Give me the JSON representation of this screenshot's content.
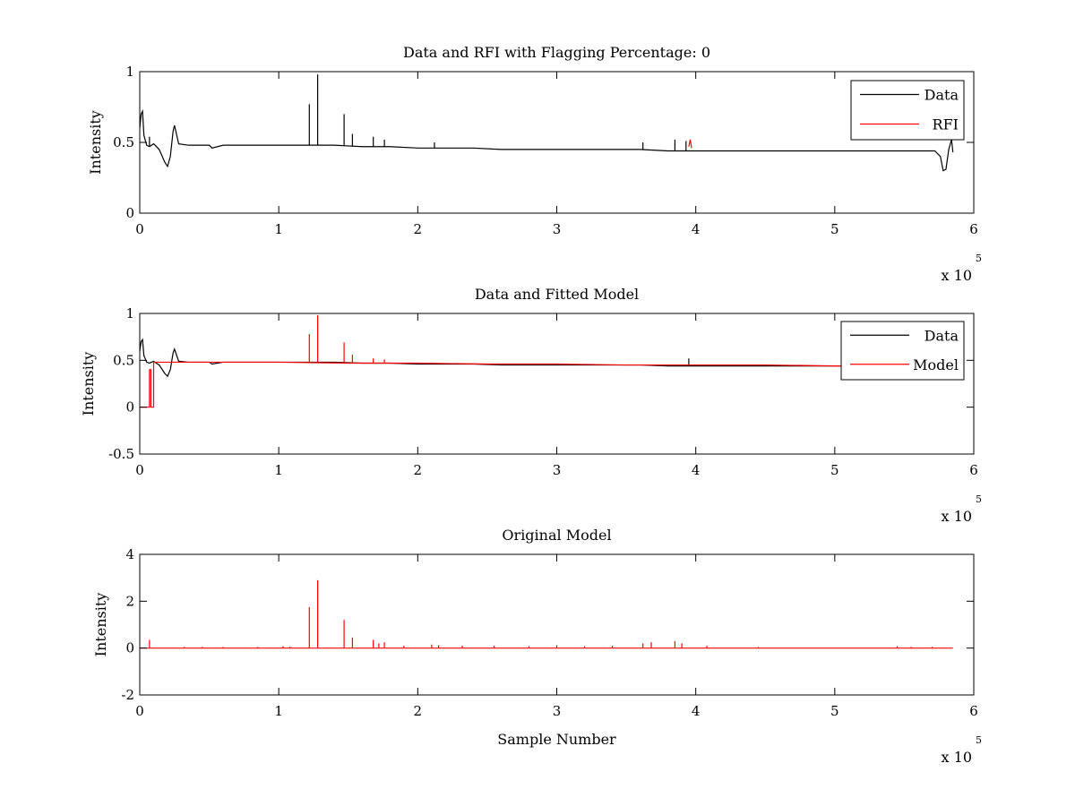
{
  "figure": {
    "background": "#ffffff",
    "colors": {
      "data": "#000000",
      "rfi": "#ff0000",
      "model": "#ff0000",
      "axis": "#000000"
    }
  },
  "chart_data": [
    {
      "id": "data-rfi",
      "type": "line",
      "title": "Data and RFI with Flagging Percentage: 0",
      "xlabel": "",
      "ylabel": "Intensity",
      "xlim": [
        0,
        6
      ],
      "ylim": [
        0,
        1
      ],
      "x_multiplier": {
        "base": "x 10",
        "exponent": "5"
      },
      "xticks": [
        0,
        1,
        2,
        3,
        4,
        5,
        6
      ],
      "yticks": [
        0,
        0.5,
        1
      ],
      "ytick_labels": [
        "0",
        "0.5",
        "1"
      ],
      "grid": false,
      "legend": {
        "placement": "top-right",
        "entries": [
          {
            "name": "Data",
            "color": "#000000"
          },
          {
            "name": "RFI",
            "color": "#ff0000"
          }
        ]
      },
      "series": [
        {
          "name": "Data",
          "color": "#000000",
          "x": [
            0,
            0.01,
            0.02,
            0.03,
            0.05,
            0.07,
            0.1,
            0.14,
            0.18,
            0.2,
            0.22,
            0.24,
            0.25,
            0.28,
            0.35,
            0.5,
            0.52,
            0.6,
            0.8,
            1.0,
            1.2,
            1.4,
            1.6,
            1.8,
            2.0,
            2.2,
            2.4,
            2.6,
            2.8,
            3.0,
            3.2,
            3.4,
            3.6,
            3.8,
            4.0,
            4.2,
            4.4,
            4.6,
            4.8,
            5.0,
            5.2,
            5.4,
            5.6,
            5.72,
            5.76,
            5.78,
            5.8,
            5.82,
            5.84,
            5.85
          ],
          "y": [
            0.6,
            0.7,
            0.72,
            0.55,
            0.48,
            0.47,
            0.49,
            0.45,
            0.36,
            0.33,
            0.4,
            0.58,
            0.62,
            0.49,
            0.48,
            0.48,
            0.46,
            0.48,
            0.48,
            0.48,
            0.48,
            0.48,
            0.47,
            0.47,
            0.46,
            0.46,
            0.46,
            0.45,
            0.45,
            0.45,
            0.45,
            0.45,
            0.45,
            0.44,
            0.44,
            0.44,
            0.44,
            0.44,
            0.44,
            0.44,
            0.44,
            0.44,
            0.44,
            0.44,
            0.4,
            0.3,
            0.31,
            0.45,
            0.52,
            0.43
          ],
          "spikes": [
            {
              "x": 0.07,
              "y": 0.54
            },
            {
              "x": 1.22,
              "y": 0.77
            },
            {
              "x": 1.28,
              "y": 0.98
            },
            {
              "x": 1.47,
              "y": 0.7
            },
            {
              "x": 1.53,
              "y": 0.56
            },
            {
              "x": 1.68,
              "y": 0.54
            },
            {
              "x": 1.76,
              "y": 0.52
            },
            {
              "x": 2.12,
              "y": 0.5
            },
            {
              "x": 3.62,
              "y": 0.5
            },
            {
              "x": 3.85,
              "y": 0.52
            },
            {
              "x": 3.93,
              "y": 0.51
            }
          ]
        },
        {
          "name": "RFI",
          "color": "#ff0000",
          "x": [
            3.95,
            3.96,
            3.97
          ],
          "y": [
            0.47,
            0.52,
            0.46
          ]
        }
      ]
    },
    {
      "id": "data-model",
      "type": "line",
      "title": "Data and Fitted Model",
      "xlabel": "",
      "ylabel": "Intensity",
      "xlim": [
        0,
        6
      ],
      "ylim": [
        -0.5,
        1
      ],
      "x_multiplier": {
        "base": "x 10",
        "exponent": "5"
      },
      "xticks": [
        0,
        1,
        2,
        3,
        4,
        5,
        6
      ],
      "yticks": [
        -0.5,
        0,
        0.5,
        1
      ],
      "ytick_labels": [
        "-0.5",
        "0",
        "0.5",
        "1"
      ],
      "grid": false,
      "legend": {
        "placement": "top-right",
        "entries": [
          {
            "name": "Data",
            "color": "#000000"
          },
          {
            "name": "Model",
            "color": "#ff0000"
          }
        ]
      },
      "series": [
        {
          "name": "Data",
          "color": "#000000",
          "x": [
            0,
            0.01,
            0.02,
            0.03,
            0.05,
            0.07,
            0.1,
            0.14,
            0.18,
            0.2,
            0.22,
            0.24,
            0.25,
            0.28,
            0.35,
            0.5,
            0.52,
            0.6,
            0.8,
            1.0,
            1.2,
            1.4,
            1.6,
            1.8,
            2.0,
            2.2,
            2.4,
            2.6,
            2.8,
            3.0,
            3.2,
            3.4,
            3.6,
            3.8,
            4.0,
            4.2,
            4.4,
            4.6,
            4.8,
            5.0,
            5.2,
            5.4,
            5.6,
            5.72,
            5.76,
            5.78,
            5.8,
            5.82,
            5.84,
            5.85
          ],
          "y": [
            0.6,
            0.7,
            0.72,
            0.55,
            0.48,
            0.47,
            0.49,
            0.45,
            0.36,
            0.33,
            0.4,
            0.58,
            0.62,
            0.49,
            0.48,
            0.48,
            0.46,
            0.48,
            0.48,
            0.48,
            0.48,
            0.48,
            0.47,
            0.47,
            0.46,
            0.46,
            0.46,
            0.45,
            0.45,
            0.45,
            0.45,
            0.45,
            0.45,
            0.44,
            0.44,
            0.44,
            0.44,
            0.44,
            0.44,
            0.44,
            0.44,
            0.44,
            0.44,
            0.44,
            0.4,
            0.3,
            0.31,
            0.45,
            0.52,
            0.43
          ],
          "spikes": [
            {
              "x": 3.95,
              "y": 0.52
            }
          ]
        },
        {
          "name": "Model",
          "color": "#ff0000",
          "x": [
            0.0,
            0.04,
            0.04,
            0.07,
            0.07,
            0.08,
            0.08,
            0.1,
            0.1,
            0.13,
            0.13,
            0.3,
            0.5,
            1.0,
            1.5,
            2.0,
            2.5,
            3.0,
            3.5,
            4.0,
            4.5,
            5.0,
            5.05
          ],
          "y": [
            0.0,
            0.0,
            0.0,
            0.0,
            0.4,
            0.4,
            0.0,
            0.0,
            0.48,
            0.48,
            0.48,
            0.48,
            0.48,
            0.48,
            0.47,
            0.47,
            0.46,
            0.46,
            0.45,
            0.45,
            0.45,
            0.44,
            0.44
          ],
          "spikes": [
            {
              "x": 1.22,
              "y": 0.78
            },
            {
              "x": 1.28,
              "y": 0.98
            },
            {
              "x": 1.47,
              "y": 0.69
            },
            {
              "x": 1.53,
              "y": 0.56
            },
            {
              "x": 1.68,
              "y": 0.52
            },
            {
              "x": 1.76,
              "y": 0.51
            }
          ]
        }
      ]
    },
    {
      "id": "original-model",
      "type": "line",
      "title": "Original Model",
      "xlabel": "Sample Number",
      "ylabel": "Intensity",
      "xlim": [
        0,
        6
      ],
      "ylim": [
        -2,
        4
      ],
      "x_multiplier": {
        "base": "x 10",
        "exponent": "5"
      },
      "xticks": [
        0,
        1,
        2,
        3,
        4,
        5,
        6
      ],
      "yticks": [
        -2,
        0,
        2,
        4
      ],
      "ytick_labels": [
        "-2",
        "0",
        "2",
        "4"
      ],
      "grid": false,
      "legend": null,
      "series": [
        {
          "name": "",
          "color": "#ff0000",
          "x": [
            0,
            5.85
          ],
          "y": [
            0,
            0
          ],
          "spikes": [
            {
              "x": 0.07,
              "y": 0.35
            },
            {
              "x": 0.32,
              "y": 0.05
            },
            {
              "x": 0.45,
              "y": 0.05
            },
            {
              "x": 0.6,
              "y": 0.05
            },
            {
              "x": 0.85,
              "y": 0.05
            },
            {
              "x": 1.03,
              "y": 0.08
            },
            {
              "x": 1.08,
              "y": 0.06
            },
            {
              "x": 1.22,
              "y": 1.75
            },
            {
              "x": 1.28,
              "y": 2.9
            },
            {
              "x": 1.47,
              "y": 1.2
            },
            {
              "x": 1.53,
              "y": 0.45
            },
            {
              "x": 1.68,
              "y": 0.35
            },
            {
              "x": 1.72,
              "y": 0.2
            },
            {
              "x": 1.76,
              "y": 0.25
            },
            {
              "x": 1.9,
              "y": 0.1
            },
            {
              "x": 2.1,
              "y": 0.15
            },
            {
              "x": 2.15,
              "y": 0.12
            },
            {
              "x": 2.32,
              "y": 0.1
            },
            {
              "x": 2.55,
              "y": 0.1
            },
            {
              "x": 2.8,
              "y": 0.08
            },
            {
              "x": 3.0,
              "y": 0.12
            },
            {
              "x": 3.2,
              "y": 0.08
            },
            {
              "x": 3.4,
              "y": 0.1
            },
            {
              "x": 3.62,
              "y": 0.2
            },
            {
              "x": 3.68,
              "y": 0.25
            },
            {
              "x": 3.85,
              "y": 0.3
            },
            {
              "x": 3.9,
              "y": 0.2
            },
            {
              "x": 4.08,
              "y": 0.1
            },
            {
              "x": 4.45,
              "y": 0.05
            },
            {
              "x": 5.45,
              "y": 0.08
            },
            {
              "x": 5.55,
              "y": 0.05
            },
            {
              "x": 5.7,
              "y": 0.05
            }
          ]
        }
      ]
    }
  ]
}
